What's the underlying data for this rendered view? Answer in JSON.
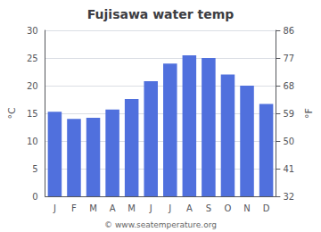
{
  "chart_data": {
    "type": "bar",
    "title": "Fujisawa water temp",
    "categories": [
      "J",
      "F",
      "M",
      "A",
      "M",
      "J",
      "J",
      "A",
      "S",
      "O",
      "N",
      "D"
    ],
    "values": [
      15.3,
      14.0,
      14.2,
      15.7,
      17.6,
      20.8,
      24.0,
      25.5,
      25.0,
      22.0,
      20.0,
      16.7
    ],
    "ylabel": "°C",
    "ylim": [
      0,
      30
    ],
    "yticks": [
      0,
      5,
      10,
      15,
      20,
      25,
      30
    ],
    "y2label": "°F",
    "y2lim": [
      32,
      86
    ],
    "y2ticks": [
      32,
      41,
      50,
      59,
      68,
      77,
      86
    ],
    "grid": true,
    "annotations": [
      "© www.seatemperature.org"
    ]
  }
}
